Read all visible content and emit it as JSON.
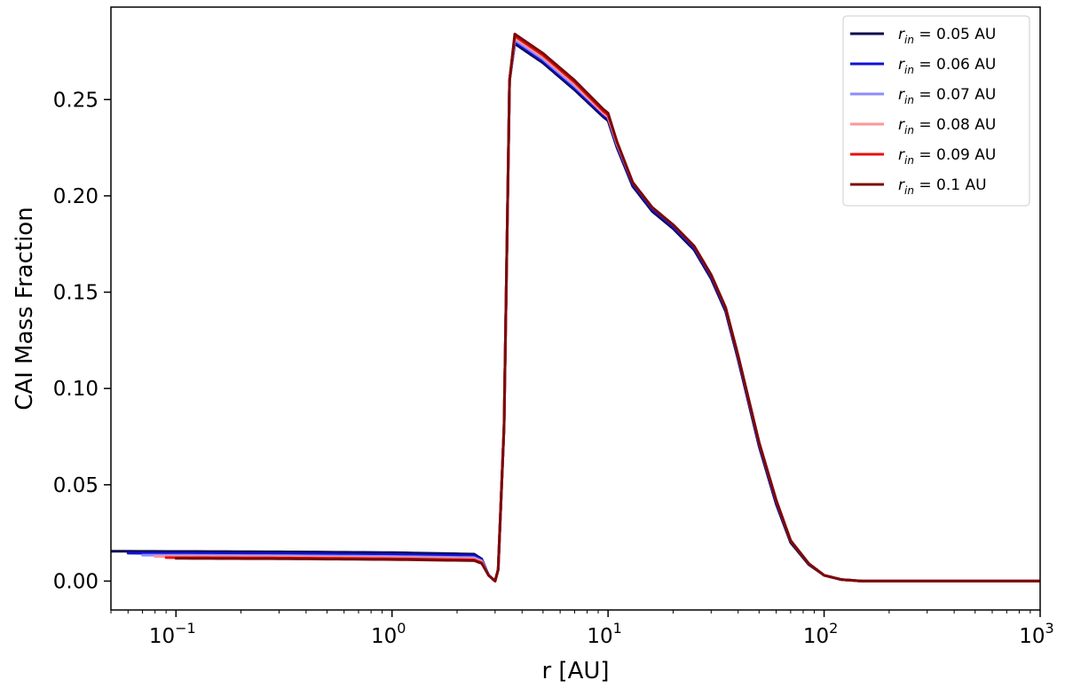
{
  "chart_data": {
    "type": "line",
    "xlabel": "r [AU]",
    "ylabel": "CAI Mass Fraction",
    "xscale": "log",
    "xlim": [
      0.05,
      1000
    ],
    "ylim": [
      -0.015,
      0.298
    ],
    "x_ticks": [
      {
        "value": 0.1,
        "base": "10",
        "exp": "−1"
      },
      {
        "value": 1,
        "base": "10",
        "exp": "0"
      },
      {
        "value": 10,
        "base": "10",
        "exp": "1"
      },
      {
        "value": 100,
        "base": "10",
        "exp": "2"
      },
      {
        "value": 1000,
        "base": "10",
        "exp": "3"
      }
    ],
    "y_ticks": [
      {
        "value": 0.0,
        "label": "0.00"
      },
      {
        "value": 0.05,
        "label": "0.05"
      },
      {
        "value": 0.1,
        "label": "0.10"
      },
      {
        "value": 0.15,
        "label": "0.15"
      },
      {
        "value": 0.2,
        "label": "0.20"
      },
      {
        "value": 0.25,
        "label": "0.25"
      }
    ],
    "grid": false,
    "legend_position": "top-right",
    "series": [
      {
        "name": "r_in = 0.05 AU",
        "legend_base": "r",
        "legend_sub": "in",
        "legend_value": " = 0.05 AU",
        "color": "#0d0d4d",
        "r_in": 0.05,
        "points": [
          [
            0.05,
            0.0155
          ],
          [
            0.3,
            0.0152
          ],
          [
            1,
            0.0148
          ],
          [
            2.4,
            0.014
          ],
          [
            2.6,
            0.0115
          ],
          [
            2.8,
            0.003
          ],
          [
            3.0,
            0.0
          ],
          [
            3.1,
            0.006
          ],
          [
            3.3,
            0.08
          ],
          [
            3.5,
            0.26
          ],
          [
            3.7,
            0.279
          ],
          [
            5,
            0.269
          ],
          [
            7,
            0.255
          ],
          [
            9.5,
            0.241
          ],
          [
            10,
            0.239
          ],
          [
            11,
            0.225
          ],
          [
            13,
            0.205
          ],
          [
            16,
            0.192
          ],
          [
            20,
            0.183
          ],
          [
            25,
            0.172
          ],
          [
            30,
            0.157
          ],
          [
            35,
            0.14
          ],
          [
            40,
            0.115
          ],
          [
            50,
            0.07
          ],
          [
            60,
            0.04
          ],
          [
            70,
            0.02
          ],
          [
            85,
            0.0085
          ],
          [
            100,
            0.003
          ],
          [
            120,
            0.0008
          ],
          [
            150,
            0.0
          ],
          [
            1000,
            0.0
          ]
        ]
      },
      {
        "name": "r_in = 0.06 AU",
        "legend_base": "r",
        "legend_sub": "in",
        "legend_value": " = 0.06 AU",
        "color": "#1010d8",
        "r_in": 0.06,
        "points": [
          [
            0.06,
            0.0145
          ],
          [
            0.3,
            0.0142
          ],
          [
            1,
            0.0138
          ],
          [
            2.4,
            0.0132
          ],
          [
            2.6,
            0.011
          ],
          [
            2.8,
            0.003
          ],
          [
            3.0,
            0.0
          ],
          [
            3.1,
            0.006
          ],
          [
            3.3,
            0.08
          ],
          [
            3.5,
            0.26
          ],
          [
            3.7,
            0.28
          ],
          [
            5,
            0.27
          ],
          [
            7,
            0.256
          ],
          [
            9.5,
            0.242
          ],
          [
            10,
            0.24
          ],
          [
            11,
            0.226
          ],
          [
            13,
            0.206
          ],
          [
            16,
            0.193
          ],
          [
            20,
            0.184
          ],
          [
            25,
            0.173
          ],
          [
            30,
            0.158
          ],
          [
            35,
            0.141
          ],
          [
            40,
            0.116
          ],
          [
            50,
            0.071
          ],
          [
            60,
            0.041
          ],
          [
            70,
            0.021
          ],
          [
            85,
            0.009
          ],
          [
            100,
            0.003
          ],
          [
            120,
            0.0008
          ],
          [
            150,
            0.0
          ],
          [
            1000,
            0.0
          ]
        ]
      },
      {
        "name": "r_in = 0.07 AU",
        "legend_base": "r",
        "legend_sub": "in",
        "legend_value": " = 0.07 AU",
        "color": "#8c8cff",
        "r_in": 0.07,
        "points": [
          [
            0.07,
            0.0135
          ],
          [
            0.3,
            0.0132
          ],
          [
            1,
            0.0128
          ],
          [
            2.4,
            0.0122
          ],
          [
            2.6,
            0.0105
          ],
          [
            2.8,
            0.003
          ],
          [
            3.0,
            0.0
          ],
          [
            3.1,
            0.006
          ],
          [
            3.3,
            0.08
          ],
          [
            3.5,
            0.26
          ],
          [
            3.7,
            0.281
          ],
          [
            5,
            0.271
          ],
          [
            7,
            0.257
          ],
          [
            9.5,
            0.243
          ],
          [
            10,
            0.241
          ],
          [
            11,
            0.227
          ],
          [
            13,
            0.207
          ],
          [
            16,
            0.194
          ],
          [
            20,
            0.185
          ],
          [
            25,
            0.174
          ],
          [
            30,
            0.159
          ],
          [
            35,
            0.142
          ],
          [
            40,
            0.117
          ],
          [
            50,
            0.072
          ],
          [
            60,
            0.042
          ],
          [
            70,
            0.021
          ],
          [
            85,
            0.009
          ],
          [
            100,
            0.003
          ],
          [
            120,
            0.0008
          ],
          [
            150,
            0.0
          ],
          [
            1000,
            0.0
          ]
        ]
      },
      {
        "name": "r_in = 0.08 AU",
        "legend_base": "r",
        "legend_sub": "in",
        "legend_value": " = 0.08 AU",
        "color": "#ff9696",
        "r_in": 0.08,
        "points": [
          [
            0.08,
            0.0128
          ],
          [
            0.3,
            0.0126
          ],
          [
            1,
            0.0122
          ],
          [
            2.4,
            0.0116
          ],
          [
            2.6,
            0.01
          ],
          [
            2.8,
            0.003
          ],
          [
            3.0,
            0.0
          ],
          [
            3.1,
            0.006
          ],
          [
            3.3,
            0.08
          ],
          [
            3.5,
            0.26
          ],
          [
            3.7,
            0.282
          ],
          [
            5,
            0.272
          ],
          [
            7,
            0.258
          ],
          [
            9.5,
            0.243
          ],
          [
            10,
            0.241
          ],
          [
            11,
            0.227
          ],
          [
            13,
            0.207
          ],
          [
            16,
            0.194
          ],
          [
            20,
            0.185
          ],
          [
            25,
            0.174
          ],
          [
            30,
            0.159
          ],
          [
            35,
            0.142
          ],
          [
            40,
            0.117
          ],
          [
            50,
            0.072
          ],
          [
            60,
            0.042
          ],
          [
            70,
            0.021
          ],
          [
            85,
            0.009
          ],
          [
            100,
            0.003
          ],
          [
            120,
            0.0008
          ],
          [
            150,
            0.0
          ],
          [
            1000,
            0.0
          ]
        ]
      },
      {
        "name": "r_in = 0.09 AU",
        "legend_base": "r",
        "legend_sub": "in",
        "legend_value": " = 0.09 AU",
        "color": "#e81010",
        "r_in": 0.09,
        "points": [
          [
            0.09,
            0.0122
          ],
          [
            0.3,
            0.012
          ],
          [
            1,
            0.0116
          ],
          [
            2.4,
            0.011
          ],
          [
            2.6,
            0.0095
          ],
          [
            2.8,
            0.003
          ],
          [
            3.0,
            0.0
          ],
          [
            3.1,
            0.006
          ],
          [
            3.3,
            0.08
          ],
          [
            3.5,
            0.26
          ],
          [
            3.7,
            0.283
          ],
          [
            5,
            0.273
          ],
          [
            7,
            0.259
          ],
          [
            9.5,
            0.244
          ],
          [
            10,
            0.242
          ],
          [
            11,
            0.228
          ],
          [
            13,
            0.207
          ],
          [
            16,
            0.194
          ],
          [
            20,
            0.185
          ],
          [
            25,
            0.174
          ],
          [
            30,
            0.159
          ],
          [
            35,
            0.142
          ],
          [
            40,
            0.117
          ],
          [
            50,
            0.072
          ],
          [
            60,
            0.042
          ],
          [
            70,
            0.021
          ],
          [
            85,
            0.009
          ],
          [
            100,
            0.003
          ],
          [
            120,
            0.0008
          ],
          [
            150,
            0.0
          ],
          [
            1000,
            0.0
          ]
        ]
      },
      {
        "name": "r_in = 0.1 AU",
        "legend_base": "r",
        "legend_sub": "in",
        "legend_value": " = 0.1 AU",
        "color": "#7a0a0a",
        "r_in": 0.1,
        "points": [
          [
            0.1,
            0.0118
          ],
          [
            0.3,
            0.0116
          ],
          [
            1,
            0.0112
          ],
          [
            2.4,
            0.0106
          ],
          [
            2.6,
            0.0092
          ],
          [
            2.8,
            0.003
          ],
          [
            3.0,
            0.0
          ],
          [
            3.1,
            0.006
          ],
          [
            3.3,
            0.08
          ],
          [
            3.5,
            0.26
          ],
          [
            3.7,
            0.284
          ],
          [
            5,
            0.274
          ],
          [
            7,
            0.26
          ],
          [
            9.5,
            0.245
          ],
          [
            10,
            0.243
          ],
          [
            11,
            0.228
          ],
          [
            13,
            0.207
          ],
          [
            16,
            0.194
          ],
          [
            20,
            0.185
          ],
          [
            25,
            0.174
          ],
          [
            30,
            0.159
          ],
          [
            35,
            0.142
          ],
          [
            40,
            0.117
          ],
          [
            50,
            0.072
          ],
          [
            60,
            0.042
          ],
          [
            70,
            0.021
          ],
          [
            85,
            0.009
          ],
          [
            100,
            0.003
          ],
          [
            120,
            0.0008
          ],
          [
            150,
            0.0
          ],
          [
            1000,
            0.0
          ]
        ]
      }
    ]
  }
}
